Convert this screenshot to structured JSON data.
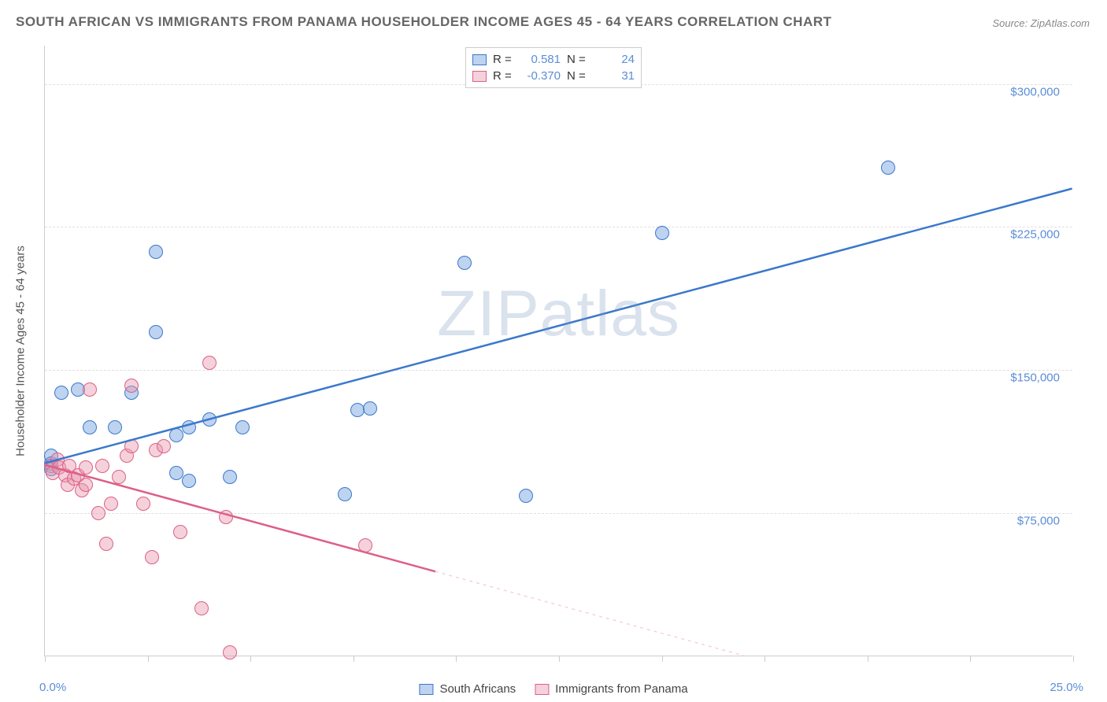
{
  "title": "SOUTH AFRICAN VS IMMIGRANTS FROM PANAMA HOUSEHOLDER INCOME AGES 45 - 64 YEARS CORRELATION CHART",
  "source": "Source: ZipAtlas.com",
  "ylabel": "Householder Income Ages 45 - 64 years",
  "watermark_a": "ZIP",
  "watermark_b": "atlas",
  "chart": {
    "type": "scatter",
    "xlim": [
      0,
      25
    ],
    "ylim": [
      0,
      320000
    ],
    "xaxis_min_label": "0.0%",
    "xaxis_max_label": "25.0%",
    "xticks": [
      0,
      2.5,
      5,
      7.5,
      10,
      12.5,
      15,
      17.5,
      20,
      22.5,
      25
    ],
    "ygrid": [
      {
        "value": 75000,
        "label": "$75,000"
      },
      {
        "value": 150000,
        "label": "$150,000"
      },
      {
        "value": 225000,
        "label": "$225,000"
      },
      {
        "value": 300000,
        "label": "$300,000"
      }
    ],
    "background_color": "#ffffff",
    "grid_color": "#e0e0e0",
    "axis_color": "#cccccc",
    "tick_label_color": "#5b8dd6",
    "marker_radius": 9,
    "marker_opacity": 0.55,
    "series": [
      {
        "name": "South Africans",
        "color": "#6d9ddc",
        "fill": "rgba(109,157,220,0.45)",
        "stroke": "#3b78cc",
        "R": "0.581",
        "N": "24",
        "regression": {
          "x1": 0,
          "y1": 101000,
          "x2": 25,
          "y2": 245000,
          "dashed_from": null
        },
        "points": [
          [
            0.15,
            101000
          ],
          [
            0.15,
            105000
          ],
          [
            0.15,
            98000
          ],
          [
            0.4,
            138000
          ],
          [
            0.8,
            140000
          ],
          [
            1.1,
            120000
          ],
          [
            1.7,
            120000
          ],
          [
            2.1,
            138000
          ],
          [
            2.7,
            170000
          ],
          [
            2.7,
            212000
          ],
          [
            3.2,
            96000
          ],
          [
            3.2,
            116000
          ],
          [
            3.5,
            120000
          ],
          [
            3.5,
            92000
          ],
          [
            4.0,
            124000
          ],
          [
            4.5,
            94000
          ],
          [
            4.8,
            120000
          ],
          [
            7.3,
            85000
          ],
          [
            7.6,
            129000
          ],
          [
            7.9,
            130000
          ],
          [
            10.2,
            206000
          ],
          [
            11.7,
            84000
          ],
          [
            15.0,
            222000
          ],
          [
            20.5,
            256000
          ]
        ]
      },
      {
        "name": "Immigrants from Panama",
        "color": "#e89ab0",
        "fill": "rgba(232,154,176,0.45)",
        "stroke": "#dd5f86",
        "R": "-0.370",
        "N": "31",
        "regression": {
          "x1": 0,
          "y1": 100000,
          "x2": 17,
          "y2": 0,
          "dashed_from": 9.5
        },
        "points": [
          [
            0.15,
            100000
          ],
          [
            0.2,
            96000
          ],
          [
            0.3,
            103000
          ],
          [
            0.35,
            99000
          ],
          [
            0.5,
            95000
          ],
          [
            0.55,
            90000
          ],
          [
            0.6,
            100000
          ],
          [
            0.7,
            93000
          ],
          [
            0.8,
            95000
          ],
          [
            0.9,
            87000
          ],
          [
            1.0,
            90000
          ],
          [
            1.0,
            99000
          ],
          [
            1.1,
            140000
          ],
          [
            1.3,
            75000
          ],
          [
            1.4,
            100000
          ],
          [
            1.5,
            59000
          ],
          [
            1.6,
            80000
          ],
          [
            1.8,
            94000
          ],
          [
            2.0,
            105000
          ],
          [
            2.1,
            142000
          ],
          [
            2.1,
            110000
          ],
          [
            2.4,
            80000
          ],
          [
            2.6,
            52000
          ],
          [
            2.7,
            108000
          ],
          [
            2.9,
            110000
          ],
          [
            3.3,
            65000
          ],
          [
            3.8,
            25000
          ],
          [
            4.0,
            154000
          ],
          [
            4.4,
            73000
          ],
          [
            4.5,
            2000
          ],
          [
            7.8,
            58000
          ]
        ]
      }
    ]
  },
  "legend_bottom": [
    {
      "label": "South Africans",
      "series_idx": 0
    },
    {
      "label": "Immigrants from Panama",
      "series_idx": 1
    }
  ]
}
